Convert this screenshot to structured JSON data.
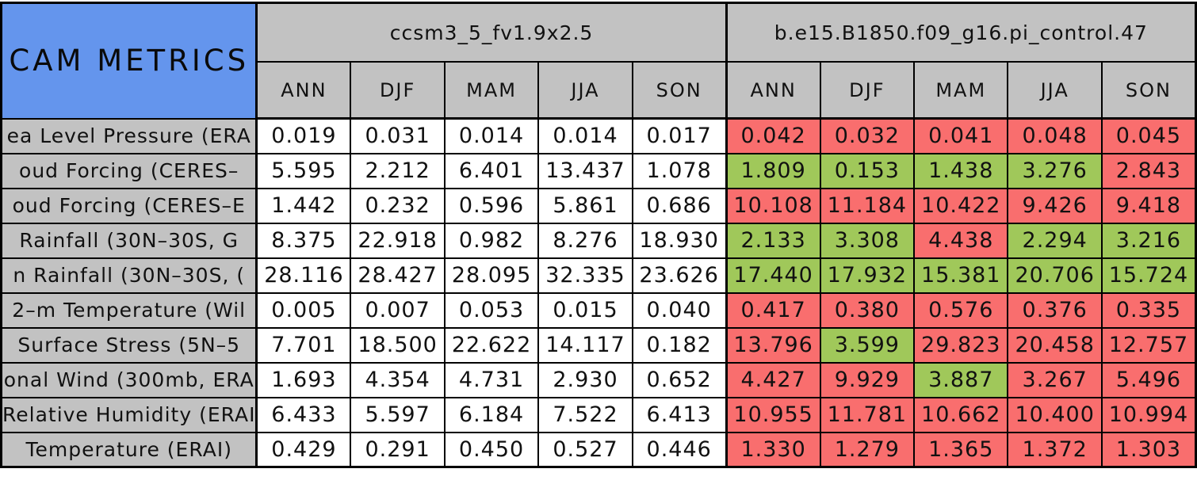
{
  "palette": {
    "header_blue": "#6495ED",
    "header_gray": "#C2C2C2",
    "cell_red": "#F96E6E",
    "cell_green": "#A0C85A",
    "cell_white": "#FFFFFF",
    "border_black": "#000000"
  },
  "chart_data": {
    "type": "table",
    "title": "CAM METRICS",
    "models": [
      "ccsm3_5_fv1.9x2.5",
      "b.e15.B1850.f09_g16.pi_control.47"
    ],
    "seasons": [
      "ANN",
      "DJF",
      "MAM",
      "JJA",
      "SON"
    ],
    "color_meaning": {
      "green": "better",
      "red": "worse"
    },
    "rows": [
      {
        "label": "ea Level Pressure (ERA",
        "model1_values": [
          "0.019",
          "0.031",
          "0.014",
          "0.014",
          "0.017"
        ],
        "model2_values": [
          "0.042",
          "0.032",
          "0.041",
          "0.048",
          "0.045"
        ],
        "model2_colors": [
          "red",
          "red",
          "red",
          "red",
          "red"
        ]
      },
      {
        "label": "oud Forcing (CERES–",
        "model1_values": [
          "5.595",
          "2.212",
          "6.401",
          "13.437",
          "1.078"
        ],
        "model2_values": [
          "1.809",
          "0.153",
          "1.438",
          "3.276",
          "2.843"
        ],
        "model2_colors": [
          "green",
          "green",
          "green",
          "green",
          "red"
        ]
      },
      {
        "label": "oud Forcing (CERES–E",
        "model1_values": [
          "1.442",
          "0.232",
          "0.596",
          "5.861",
          "0.686"
        ],
        "model2_values": [
          "10.108",
          "11.184",
          "10.422",
          "9.426",
          "9.418"
        ],
        "model2_colors": [
          "red",
          "red",
          "red",
          "red",
          "red"
        ]
      },
      {
        "label": "Rainfall (30N–30S, G",
        "model1_values": [
          "8.375",
          "22.918",
          "0.982",
          "8.276",
          "18.930"
        ],
        "model2_values": [
          "2.133",
          "3.308",
          "4.438",
          "2.294",
          "3.216"
        ],
        "model2_colors": [
          "green",
          "green",
          "red",
          "green",
          "green"
        ]
      },
      {
        "label": "n Rainfall (30N–30S, (",
        "model1_values": [
          "28.116",
          "28.427",
          "28.095",
          "32.335",
          "23.626"
        ],
        "model2_values": [
          "17.440",
          "17.932",
          "15.381",
          "20.706",
          "15.724"
        ],
        "model2_colors": [
          "green",
          "green",
          "green",
          "green",
          "green"
        ]
      },
      {
        "label": "2–m Temperature (Wil",
        "model1_values": [
          "0.005",
          "0.007",
          "0.053",
          "0.015",
          "0.040"
        ],
        "model2_values": [
          "0.417",
          "0.380",
          "0.576",
          "0.376",
          "0.335"
        ],
        "model2_colors": [
          "red",
          "red",
          "red",
          "red",
          "red"
        ]
      },
      {
        "label": "Surface Stress (5N–5",
        "model1_values": [
          "7.701",
          "18.500",
          "22.622",
          "14.117",
          "0.182"
        ],
        "model2_values": [
          "13.796",
          "3.599",
          "29.823",
          "20.458",
          "12.757"
        ],
        "model2_colors": [
          "red",
          "green",
          "red",
          "red",
          "red"
        ]
      },
      {
        "label": "onal Wind (300mb, ERA",
        "model1_values": [
          "1.693",
          "4.354",
          "4.731",
          "2.930",
          "0.652"
        ],
        "model2_values": [
          "4.427",
          "9.929",
          "3.887",
          "3.267",
          "5.496"
        ],
        "model2_colors": [
          "red",
          "red",
          "green",
          "red",
          "red"
        ]
      },
      {
        "label": "Relative Humidity (ERAI",
        "model1_values": [
          "6.433",
          "5.597",
          "6.184",
          "7.522",
          "6.413"
        ],
        "model2_values": [
          "10.955",
          "11.781",
          "10.662",
          "10.400",
          "10.994"
        ],
        "model2_colors": [
          "red",
          "red",
          "red",
          "red",
          "red"
        ]
      },
      {
        "label": "Temperature (ERAI)",
        "model1_values": [
          "0.429",
          "0.291",
          "0.450",
          "0.527",
          "0.446"
        ],
        "model2_values": [
          "1.330",
          "1.279",
          "1.365",
          "1.372",
          "1.303"
        ],
        "model2_colors": [
          "red",
          "red",
          "red",
          "red",
          "red"
        ]
      }
    ]
  }
}
